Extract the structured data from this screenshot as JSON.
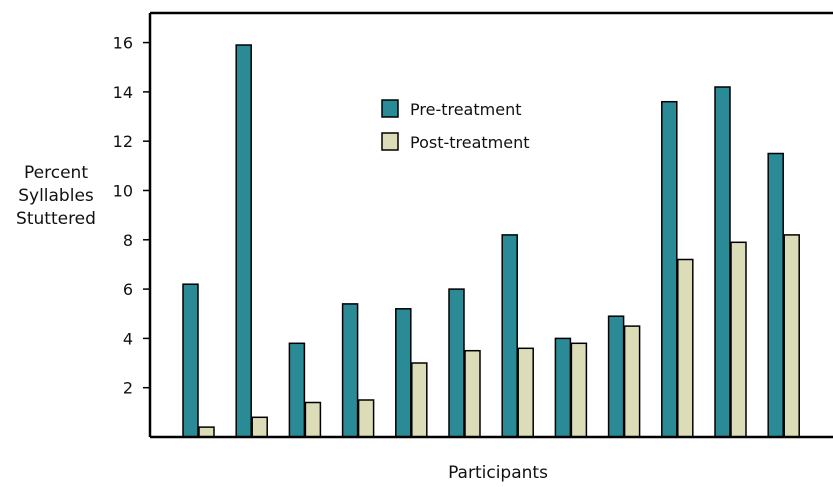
{
  "chart_data": {
    "type": "bar",
    "title": "",
    "xlabel": "Participants",
    "ylabel": [
      "Percent",
      "Syllables",
      "Stuttered"
    ],
    "ylim": [
      0,
      17.2
    ],
    "yticks": [
      "2",
      "4",
      "6",
      "8",
      "10",
      "12",
      "14",
      "16"
    ],
    "grid": false,
    "legend_position": "top-center",
    "categories": [
      "",
      "",
      "",
      "",
      "",
      "",
      "",
      "",
      "",
      "",
      "",
      ""
    ],
    "series": [
      {
        "name": "Pre-treatment",
        "color": "#2a8a96",
        "values": [
          6.2,
          15.9,
          3.8,
          5.4,
          5.2,
          6.0,
          8.2,
          4.0,
          4.9,
          13.6,
          14.2,
          11.5
        ]
      },
      {
        "name": "Post-treatment",
        "color": "#dcdcb9",
        "values": [
          0.4,
          0.8,
          1.4,
          1.5,
          3.0,
          3.5,
          3.6,
          3.8,
          4.5,
          7.2,
          7.9,
          8.2
        ]
      }
    ]
  }
}
